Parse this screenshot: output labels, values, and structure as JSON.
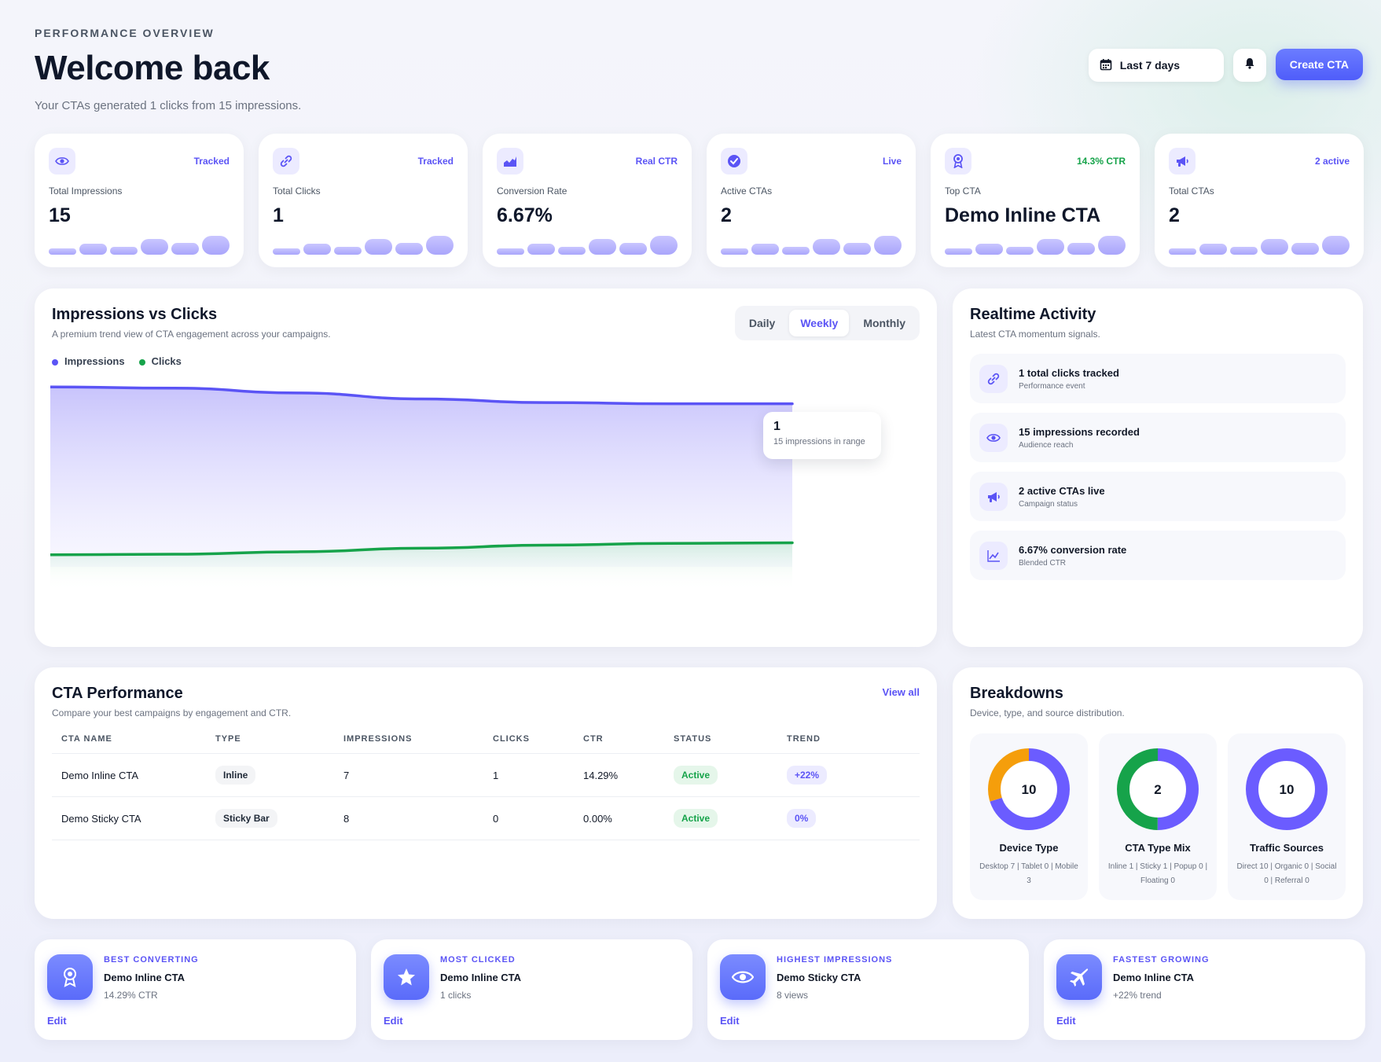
{
  "header": {
    "eyebrow": "PERFORMANCE OVERVIEW",
    "title": "Welcome back",
    "subtitle": "Your CTAs generated 1 clicks from 15 impressions.",
    "range_label": "Last 7 days",
    "create_label": "Create CTA"
  },
  "stats": [
    {
      "label": "Total Impressions",
      "value": "15",
      "badge": "Tracked",
      "icon": "eye-icon"
    },
    {
      "label": "Total Clicks",
      "value": "1",
      "badge": "Tracked",
      "icon": "link-icon"
    },
    {
      "label": "Conversion Rate",
      "value": "6.67%",
      "badge": "Real CTR",
      "icon": "chart-icon"
    },
    {
      "label": "Active CTAs",
      "value": "2",
      "badge": "Live",
      "icon": "check-circle-icon"
    },
    {
      "label": "Top CTA",
      "value": "Demo Inline CTA",
      "badge": "14.3% CTR",
      "icon": "award-icon"
    },
    {
      "label": "Total CTAs",
      "value": "2",
      "badge": "2 active",
      "icon": "megaphone-icon"
    }
  ],
  "trend_chart": {
    "title": "Impressions vs Clicks",
    "subtitle": "A premium trend view of CTA engagement across your campaigns.",
    "tabs": [
      "Daily",
      "Weekly",
      "Monthly"
    ],
    "active_tab": "Weekly",
    "legend": [
      "Impressions",
      "Clicks"
    ],
    "tooltip_value": "1",
    "tooltip_label": "15 impressions in range"
  },
  "chart_data": {
    "type": "area",
    "x": [
      "1",
      "2",
      "3",
      "4",
      "5",
      "6",
      "7"
    ],
    "series": [
      {
        "name": "Impressions",
        "color": "#5b54f5",
        "values": [
          15,
          14.9,
          14.5,
          14.0,
          13.7,
          13.6,
          13.6
        ]
      },
      {
        "name": "Clicks",
        "color": "#16a34a",
        "values": [
          1.0,
          1.05,
          1.25,
          1.55,
          1.8,
          1.95,
          2.0
        ]
      }
    ],
    "ylim": [
      0,
      16
    ]
  },
  "realtime": {
    "title": "Realtime Activity",
    "subtitle": "Latest CTA momentum signals.",
    "items": [
      {
        "title": "1 total clicks tracked",
        "sub": "Performance event",
        "icon": "link-icon"
      },
      {
        "title": "15 impressions recorded",
        "sub": "Audience reach",
        "icon": "eye-icon"
      },
      {
        "title": "2 active CTAs live",
        "sub": "Campaign status",
        "icon": "megaphone-icon"
      },
      {
        "title": "6.67% conversion rate",
        "sub": "Blended CTR",
        "icon": "chart-line-icon"
      }
    ]
  },
  "performance": {
    "title": "CTA Performance",
    "subtitle": "Compare your best campaigns by engagement and CTR.",
    "view_all": "View all",
    "columns": [
      "CTA NAME",
      "TYPE",
      "IMPRESSIONS",
      "CLICKS",
      "CTR",
      "STATUS",
      "TREND"
    ],
    "rows": [
      [
        "Demo Inline CTA",
        "Inline",
        "7",
        "1",
        "14.29%",
        "Active",
        "+22%"
      ],
      [
        "Demo Sticky CTA",
        "Sticky Bar",
        "8",
        "0",
        "0.00%",
        "Active",
        "0%"
      ]
    ]
  },
  "breakdowns": {
    "title": "Breakdowns",
    "subtitle": "Device, type, and source distribution.",
    "donuts": [
      {
        "name": "Device Type",
        "total": "10",
        "detail": "Desktop 7 | Tablet 0 | Mobile 3",
        "segments": [
          {
            "value": 7,
            "color": "#6b5cff"
          },
          {
            "value": 3,
            "color": "#f59e0b"
          }
        ]
      },
      {
        "name": "CTA Type Mix",
        "total": "2",
        "detail": "Inline 1 | Sticky 1 | Popup 0 | Floating 0",
        "segments": [
          {
            "value": 1,
            "color": "#6b5cff"
          },
          {
            "value": 1,
            "color": "#16a34a"
          }
        ]
      },
      {
        "name": "Traffic Sources",
        "total": "10",
        "detail": "Direct 10 | Organic 0 | Social 0 | Referral 0",
        "segments": [
          {
            "value": 10,
            "color": "#6b5cff"
          }
        ]
      }
    ]
  },
  "insights": [
    {
      "eyebrow": "BEST CONVERTING",
      "name": "Demo Inline CTA",
      "meta": "14.29% CTR",
      "edit": "Edit",
      "icon": "award-icon"
    },
    {
      "eyebrow": "MOST CLICKED",
      "name": "Demo Inline CTA",
      "meta": "1 clicks",
      "edit": "Edit",
      "icon": "star-icon"
    },
    {
      "eyebrow": "HIGHEST IMPRESSIONS",
      "name": "Demo Sticky CTA",
      "meta": "8 views",
      "edit": "Edit",
      "icon": "eye-icon"
    },
    {
      "eyebrow": "FASTEST GROWING",
      "name": "Demo Inline CTA",
      "meta": "+22% trend",
      "edit": "Edit",
      "icon": "plane-icon"
    }
  ],
  "colors": {
    "accent": "#5b54f5",
    "success": "#16a34a",
    "warning": "#f59e0b"
  }
}
